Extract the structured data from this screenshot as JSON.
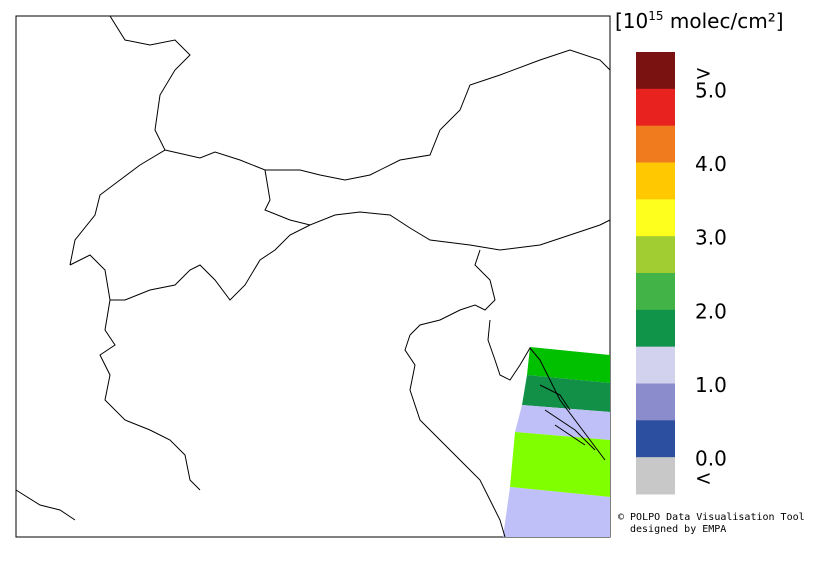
{
  "legend": {
    "title_prefix": "[10",
    "title_exponent": "15",
    "title_suffix": " molec/cm²]",
    "bins": [
      "#7a1212",
      "#e8221e",
      "#f07a1e",
      "#ffc800",
      "#ffff1e",
      "#a2cd32",
      "#42b347",
      "#0f9449",
      "#d2d2ee",
      "#8a8ccc",
      "#2c4fa0",
      "#c8c8c8"
    ],
    "labels": [
      ">",
      "5.0",
      "4.0",
      "3.0",
      "2.0",
      "1.0",
      "0.0",
      "<"
    ]
  },
  "credit": {
    "line1": "© POLPO Data Visualisation Tool",
    "line2": "designed by EMPA"
  }
}
